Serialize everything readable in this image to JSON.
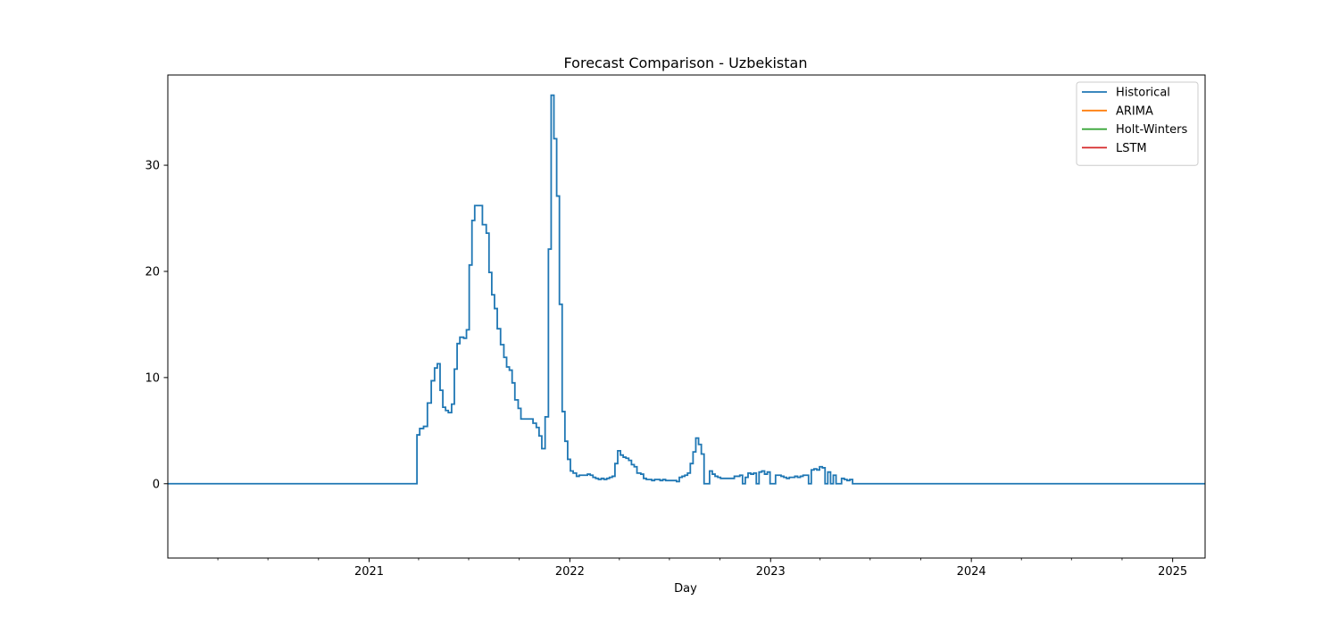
{
  "chart_data": {
    "type": "line",
    "title": "Forecast Comparison - Uzbekistan",
    "xlabel": "Day",
    "ylabel": "",
    "x_type": "date",
    "xlim": [
      "2020-01-01",
      "2025-03-01"
    ],
    "ylim": [
      -7,
      38.5
    ],
    "y_ticks": [
      0,
      10,
      20,
      30
    ],
    "x_ticks": [
      {
        "date": "2021-01-01",
        "label": "2021"
      },
      {
        "date": "2022-01-01",
        "label": "2022"
      },
      {
        "date": "2023-01-01",
        "label": "2023"
      },
      {
        "date": "2024-01-01",
        "label": "2024"
      },
      {
        "date": "2025-01-01",
        "label": "2025"
      }
    ],
    "x_minor_ticks": [
      "2020-04-01",
      "2020-07-01",
      "2020-10-01",
      "2021-04-01",
      "2021-07-01",
      "2021-10-01",
      "2022-04-01",
      "2022-07-01",
      "2022-10-01",
      "2023-04-01",
      "2023-07-01",
      "2023-10-01",
      "2024-04-01",
      "2024-07-01",
      "2024-10-01"
    ],
    "grid": false,
    "legend_position": "top-right",
    "series": [
      {
        "name": "Historical",
        "color": "#1f77b4",
        "step": true,
        "points": [
          [
            "2020-01-01",
            0
          ],
          [
            "2021-03-28",
            0
          ],
          [
            "2021-03-29",
            4.6
          ],
          [
            "2021-04-03",
            5.2
          ],
          [
            "2021-04-10",
            5.4
          ],
          [
            "2021-04-17",
            7.6
          ],
          [
            "2021-04-24",
            9.7
          ],
          [
            "2021-04-30",
            10.9
          ],
          [
            "2021-05-05",
            11.3
          ],
          [
            "2021-05-10",
            8.8
          ],
          [
            "2021-05-15",
            7.2
          ],
          [
            "2021-05-20",
            6.9
          ],
          [
            "2021-05-25",
            6.7
          ],
          [
            "2021-05-31",
            7.5
          ],
          [
            "2021-06-05",
            10.8
          ],
          [
            "2021-06-10",
            13.2
          ],
          [
            "2021-06-15",
            13.8
          ],
          [
            "2021-06-22",
            13.7
          ],
          [
            "2021-06-27",
            14.5
          ],
          [
            "2021-07-02",
            20.6
          ],
          [
            "2021-07-07",
            24.8
          ],
          [
            "2021-07-12",
            26.2
          ],
          [
            "2021-07-26",
            24.4
          ],
          [
            "2021-08-02",
            23.6
          ],
          [
            "2021-08-07",
            19.9
          ],
          [
            "2021-08-12",
            17.8
          ],
          [
            "2021-08-17",
            16.5
          ],
          [
            "2021-08-22",
            14.6
          ],
          [
            "2021-08-28",
            13.1
          ],
          [
            "2021-09-03",
            11.9
          ],
          [
            "2021-09-08",
            11.0
          ],
          [
            "2021-09-13",
            10.7
          ],
          [
            "2021-09-18",
            9.5
          ],
          [
            "2021-09-23",
            7.9
          ],
          [
            "2021-09-29",
            7.1
          ],
          [
            "2021-10-04",
            6.1
          ],
          [
            "2021-10-26",
            5.7
          ],
          [
            "2021-11-01",
            5.3
          ],
          [
            "2021-11-06",
            4.5
          ],
          [
            "2021-11-11",
            3.3
          ],
          [
            "2021-11-17",
            6.3
          ],
          [
            "2021-11-23",
            22.1
          ],
          [
            "2021-11-28",
            36.6
          ],
          [
            "2021-12-03",
            32.5
          ],
          [
            "2021-12-08",
            27.1
          ],
          [
            "2021-12-13",
            16.9
          ],
          [
            "2021-12-18",
            6.8
          ],
          [
            "2021-12-23",
            4.0
          ],
          [
            "2021-12-28",
            2.3
          ],
          [
            "2022-01-02",
            1.2
          ],
          [
            "2022-01-07",
            1.0
          ],
          [
            "2022-01-13",
            0.7
          ],
          [
            "2022-01-18",
            0.8
          ],
          [
            "2022-01-28",
            0.8
          ],
          [
            "2022-02-02",
            0.9
          ],
          [
            "2022-02-07",
            0.8
          ],
          [
            "2022-02-12",
            0.6
          ],
          [
            "2022-02-17",
            0.5
          ],
          [
            "2022-02-22",
            0.4
          ],
          [
            "2022-02-27",
            0.5
          ],
          [
            "2022-03-04",
            0.4
          ],
          [
            "2022-03-09",
            0.5
          ],
          [
            "2022-03-14",
            0.6
          ],
          [
            "2022-03-19",
            0.7
          ],
          [
            "2022-03-24",
            1.9
          ],
          [
            "2022-03-29",
            3.1
          ],
          [
            "2022-04-03",
            2.7
          ],
          [
            "2022-04-08",
            2.5
          ],
          [
            "2022-04-13",
            2.4
          ],
          [
            "2022-04-18",
            2.2
          ],
          [
            "2022-04-23",
            1.8
          ],
          [
            "2022-04-28",
            1.6
          ],
          [
            "2022-05-03",
            1.0
          ],
          [
            "2022-05-10",
            0.9
          ],
          [
            "2022-05-15",
            0.5
          ],
          [
            "2022-05-20",
            0.4
          ],
          [
            "2022-05-30",
            0.3
          ],
          [
            "2022-06-04",
            0.4
          ],
          [
            "2022-06-09",
            0.4
          ],
          [
            "2022-06-14",
            0.3
          ],
          [
            "2022-06-19",
            0.4
          ],
          [
            "2022-06-24",
            0.3
          ],
          [
            "2022-07-04",
            0.3
          ],
          [
            "2022-07-09",
            0.3
          ],
          [
            "2022-07-14",
            0.2
          ],
          [
            "2022-07-19",
            0.6
          ],
          [
            "2022-07-24",
            0.7
          ],
          [
            "2022-07-29",
            0.8
          ],
          [
            "2022-08-03",
            1.0
          ],
          [
            "2022-08-08",
            1.9
          ],
          [
            "2022-08-13",
            3.0
          ],
          [
            "2022-08-18",
            4.3
          ],
          [
            "2022-08-23",
            3.7
          ],
          [
            "2022-08-28",
            2.8
          ],
          [
            "2022-09-02",
            0.0
          ],
          [
            "2022-09-12",
            1.2
          ],
          [
            "2022-09-17",
            0.9
          ],
          [
            "2022-09-22",
            0.7
          ],
          [
            "2022-09-27",
            0.6
          ],
          [
            "2022-10-02",
            0.5
          ],
          [
            "2022-10-07",
            0.5
          ],
          [
            "2022-10-27",
            0.7
          ],
          [
            "2022-11-06",
            0.8
          ],
          [
            "2022-11-11",
            0.0
          ],
          [
            "2022-11-16",
            0.6
          ],
          [
            "2022-11-21",
            1.0
          ],
          [
            "2022-11-26",
            0.9
          ],
          [
            "2022-12-01",
            1.0
          ],
          [
            "2022-12-06",
            0.0
          ],
          [
            "2022-12-11",
            1.1
          ],
          [
            "2022-12-16",
            1.2
          ],
          [
            "2022-12-21",
            0.9
          ],
          [
            "2022-12-26",
            1.1
          ],
          [
            "2022-12-31",
            0.0
          ],
          [
            "2023-01-10",
            0.8
          ],
          [
            "2023-01-20",
            0.7
          ],
          [
            "2023-01-25",
            0.6
          ],
          [
            "2023-01-30",
            0.5
          ],
          [
            "2023-02-04",
            0.6
          ],
          [
            "2023-02-14",
            0.7
          ],
          [
            "2023-02-19",
            0.6
          ],
          [
            "2023-02-24",
            0.7
          ],
          [
            "2023-03-01",
            0.8
          ],
          [
            "2023-03-11",
            0.0
          ],
          [
            "2023-03-16",
            1.3
          ],
          [
            "2023-03-21",
            1.4
          ],
          [
            "2023-03-26",
            1.3
          ],
          [
            "2023-03-31",
            1.6
          ],
          [
            "2023-04-05",
            1.5
          ],
          [
            "2023-04-10",
            0.0
          ],
          [
            "2023-04-15",
            1.1
          ],
          [
            "2023-04-20",
            0.0
          ],
          [
            "2023-04-25",
            0.8
          ],
          [
            "2023-04-30",
            0.0
          ],
          [
            "2023-05-10",
            0.5
          ],
          [
            "2023-05-15",
            0.4
          ],
          [
            "2023-05-20",
            0.3
          ],
          [
            "2023-05-25",
            0.4
          ],
          [
            "2023-05-30",
            0.0
          ],
          [
            "2023-12-31",
            0.0
          ],
          [
            "2025-03-01",
            0.0
          ]
        ]
      },
      {
        "name": "ARIMA",
        "color": "#ff7f0e",
        "points": []
      },
      {
        "name": "Holt-Winters",
        "color": "#2ca02c",
        "points": []
      },
      {
        "name": "LSTM",
        "color": "#d62728",
        "points": []
      }
    ]
  }
}
